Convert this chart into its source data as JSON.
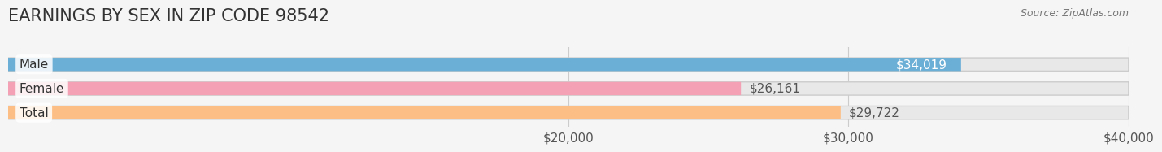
{
  "title": "EARNINGS BY SEX IN ZIP CODE 98542",
  "source_text": "Source: ZipAtlas.com",
  "categories": [
    "Male",
    "Female",
    "Total"
  ],
  "values": [
    34019,
    26161,
    29722
  ],
  "bar_colors": [
    "#6baed6",
    "#f4a0b5",
    "#fdbe85"
  ],
  "label_colors": [
    "#6baed6",
    "#f4a0b5",
    "#fdbe85"
  ],
  "bar_colors_dark": [
    "#4a90c4",
    "#e87fa0",
    "#f7a550"
  ],
  "value_labels": [
    "$34,019",
    "$26,161",
    "$29,722"
  ],
  "value_label_colors": [
    "white",
    "#555555",
    "#555555"
  ],
  "xlim": [
    0,
    40000
  ],
  "xticks": [
    20000,
    30000,
    40000
  ],
  "xtick_labels": [
    "$20,000",
    "$30,000",
    "$40,000"
  ],
  "background_color": "#f5f5f5",
  "bar_background_color": "#e8e8e8",
  "title_fontsize": 15,
  "axis_fontsize": 11,
  "bar_label_fontsize": 11,
  "value_fontsize": 11
}
